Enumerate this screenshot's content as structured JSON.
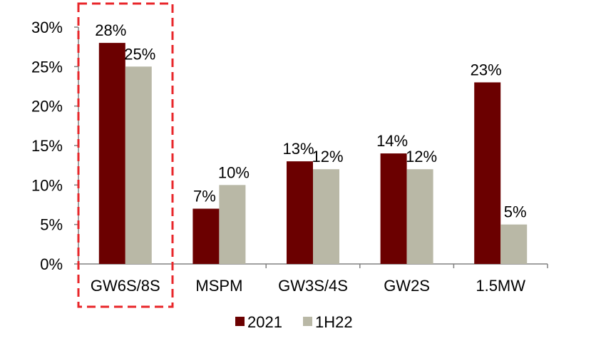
{
  "chart_data": {
    "type": "bar",
    "categories": [
      "GW6S/8S",
      "MSPM",
      "GW3S/4S",
      "GW2S",
      "1.5MW"
    ],
    "series": [
      {
        "name": "2021",
        "values": [
          28,
          7,
          13,
          14,
          23
        ],
        "labels": [
          "28%",
          "7%",
          "13%",
          "14%",
          "23%"
        ]
      },
      {
        "name": "1H22",
        "values": [
          25,
          10,
          12,
          12,
          5
        ],
        "labels": [
          "25%",
          "10%",
          "12%",
          "12%",
          "5%"
        ]
      }
    ],
    "ylim": [
      0,
      30
    ],
    "yticks": [
      0,
      5,
      10,
      15,
      20,
      25,
      30
    ],
    "ytick_labels": [
      "0%",
      "5%",
      "10%",
      "15%",
      "20%",
      "25%",
      "30%"
    ],
    "grid": false,
    "legend_position": "bottom-center",
    "highlight_category": "GW6S/8S"
  },
  "colors": {
    "2021": "#6b0000",
    "1H22": "#b9b8a6",
    "highlight": "#e8262a",
    "axis": "#808080"
  }
}
